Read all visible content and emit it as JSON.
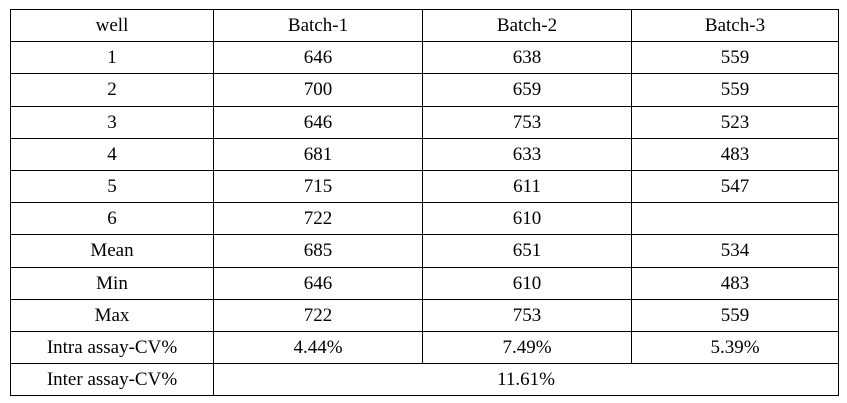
{
  "table": {
    "header": [
      "well",
      "Batch-1",
      "Batch-2",
      "Batch-3"
    ],
    "rows": [
      [
        "1",
        "646",
        "638",
        "559"
      ],
      [
        "2",
        "700",
        "659",
        "559"
      ],
      [
        "3",
        "646",
        "753",
        "523"
      ],
      [
        "4",
        "681",
        "633",
        "483"
      ],
      [
        "5",
        "715",
        "611",
        "547"
      ],
      [
        "6",
        "722",
        "610",
        null
      ],
      [
        "Mean",
        "685",
        "651",
        "534"
      ],
      [
        "Min",
        "646",
        "610",
        "483"
      ],
      [
        "Max",
        "722",
        "753",
        "559"
      ],
      [
        "Intra assay-CV%",
        "4.44%",
        "7.49%",
        "5.39%"
      ],
      [
        "Inter assay-CV%",
        "11.61%"
      ]
    ]
  }
}
